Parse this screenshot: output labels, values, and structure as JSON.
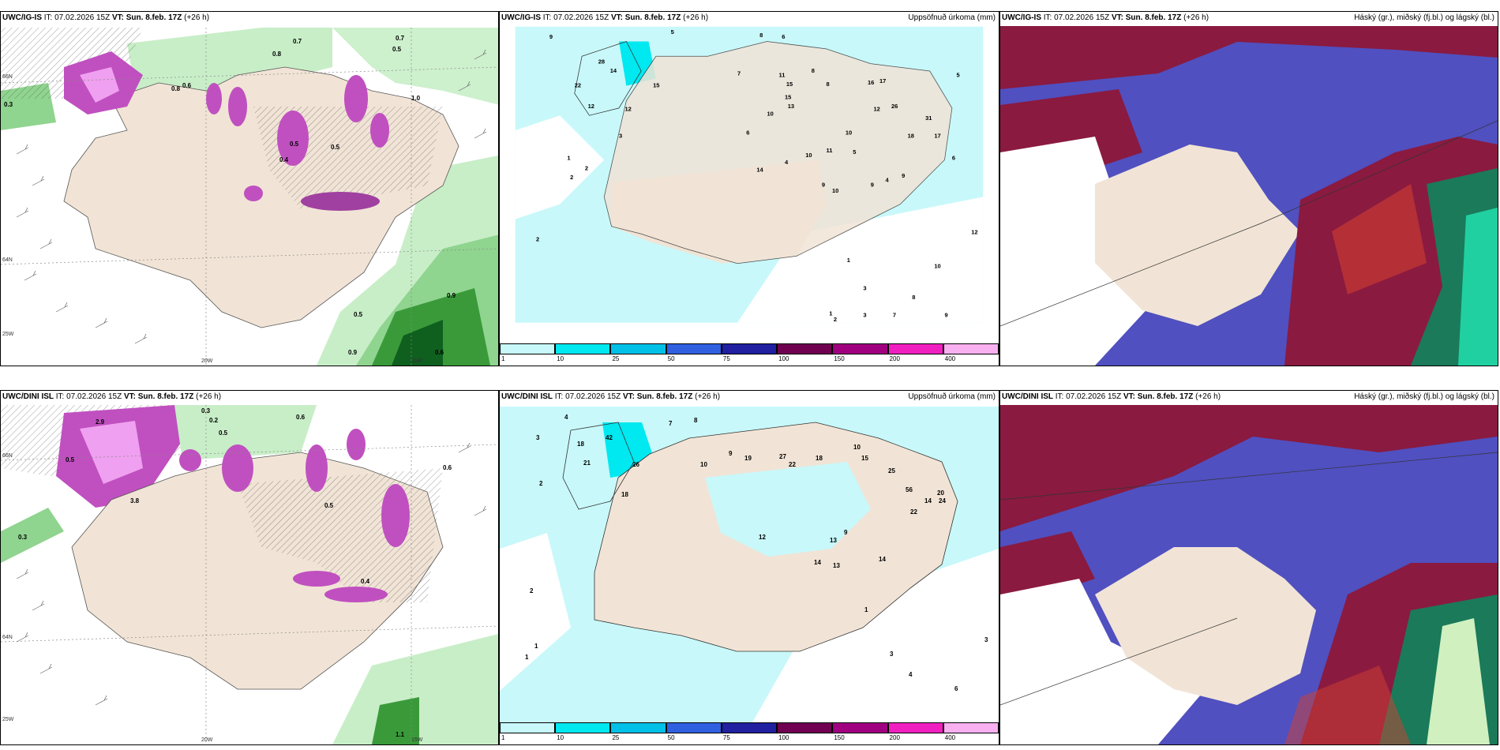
{
  "figure": {
    "row1": {
      "model": "UWC/IG-IS",
      "init": "IT: 07.02.2026 15Z",
      "valid": "VT: Sun. 8.feb. 17Z",
      "lead": "(+26 h)"
    },
    "row2": {
      "model": "UWC/DINI ISL",
      "init": "IT: 07.02.2026 15Z",
      "valid": "VT: Sun. 8.feb. 17Z",
      "lead": "(+26 h)"
    },
    "precip_title": "Uppsöfnuð úrkoma (mm)",
    "cloud_title": "Háský (gr.), miðský (fj.bl.) og lágský (bl.)",
    "colorbar": {
      "ticks": [
        "1",
        "10",
        "25",
        "50",
        "75",
        "100",
        "150",
        "200",
        "400"
      ],
      "colors": [
        "#c8f8fa",
        "#00e8f0",
        "#00c0e8",
        "#3060e0",
        "#2020a0",
        "#700050",
        "#a00080",
        "#f020c0",
        "#f8b0f0"
      ]
    },
    "axes": {
      "lon1": "20W",
      "lon2": "15W",
      "lon3": "25W",
      "lat1": "66N",
      "lat2": "64N"
    },
    "precip_values_row1": [
      "9",
      "5",
      "8",
      "6",
      "7",
      "11",
      "15",
      "8",
      "8",
      "10",
      "6",
      "16",
      "17",
      "15",
      "26",
      "31",
      "17",
      "12",
      "10",
      "13",
      "12",
      "28",
      "14",
      "22",
      "15",
      "12",
      "3",
      "1",
      "2",
      "2",
      "14",
      "4",
      "10",
      "11",
      "5",
      "9",
      "10",
      "9",
      "12",
      "2",
      "1",
      "10",
      "5",
      "3",
      "8",
      "1",
      "2",
      "3",
      "7",
      "9",
      "9",
      "18",
      "4",
      "6"
    ],
    "precip_values_row2": [
      "4",
      "3",
      "7",
      "8",
      "18",
      "21",
      "42",
      "26",
      "18",
      "10",
      "9",
      "19",
      "27",
      "22",
      "18",
      "10",
      "15",
      "25",
      "56",
      "14",
      "22",
      "20",
      "24",
      "12",
      "14",
      "13",
      "9",
      "13",
      "14",
      "1",
      "2",
      "3",
      "4",
      "6",
      "3",
      "1",
      "1",
      "2"
    ],
    "wind_values_row1": [
      "0.3",
      "0.7",
      "0.8",
      "0.5",
      "0.7",
      "0.5",
      "0.9",
      "0.6",
      "0.5",
      "1.0",
      "0.4",
      "0.6",
      "0.9",
      "0.8",
      "0.5"
    ],
    "wind_values_row2": [
      "0.3",
      "0.2",
      "0.6",
      "0.5",
      "3.8",
      "2.9",
      "0.5",
      "0.6",
      "0.3",
      "1.1",
      "0.5",
      "0.4"
    ]
  }
}
